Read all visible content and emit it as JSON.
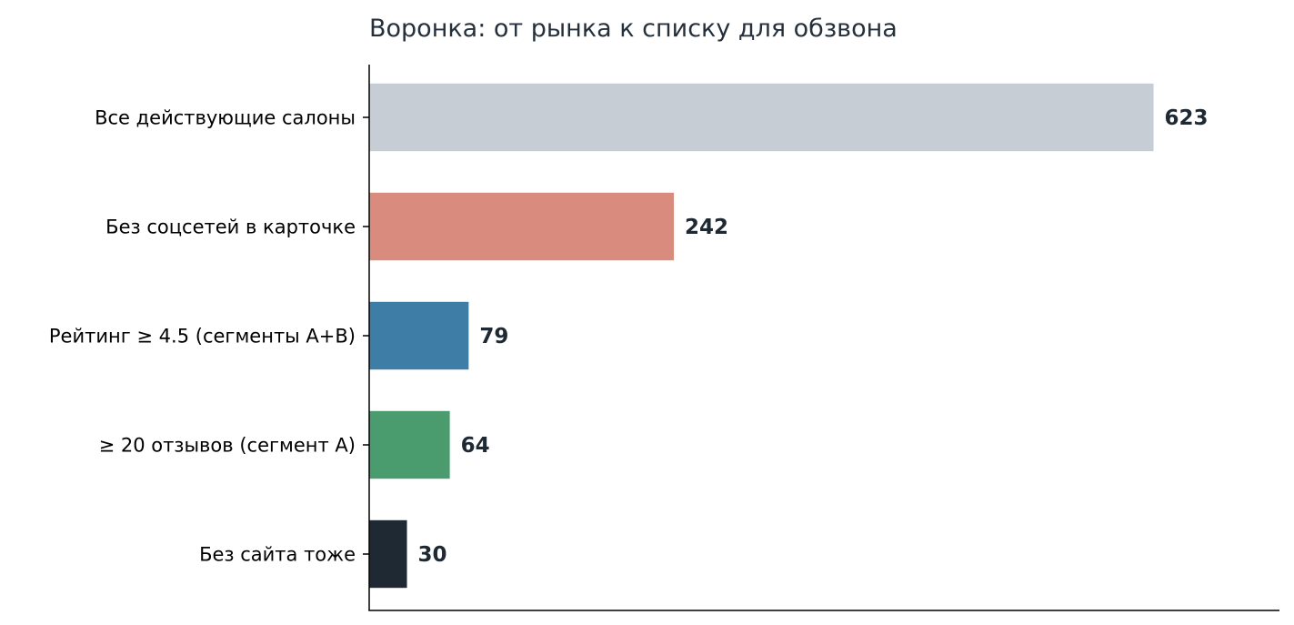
{
  "chart_data": {
    "type": "bar",
    "orientation": "horizontal",
    "title": "Воронка: от рынка к списку для обзвона",
    "xlabel": "",
    "ylabel": "",
    "xlim": [
      0,
      723
    ],
    "grid": false,
    "legend": "none",
    "categories": [
      "Все действующие салоны",
      "Без соцсетей в карточке",
      "Рейтинг ≥ 4.5 (сегменты А+В)",
      "≥ 20 отзывов (сегмент А)",
      "Без сайта тоже"
    ],
    "values": [
      623,
      242,
      79,
      64,
      30
    ],
    "value_labels": [
      "623",
      "242",
      "79",
      "64",
      "30"
    ],
    "colors": [
      "#c6cdd5",
      "#d98b7e",
      "#3d7da6",
      "#4a9c6e",
      "#1f2933"
    ]
  }
}
